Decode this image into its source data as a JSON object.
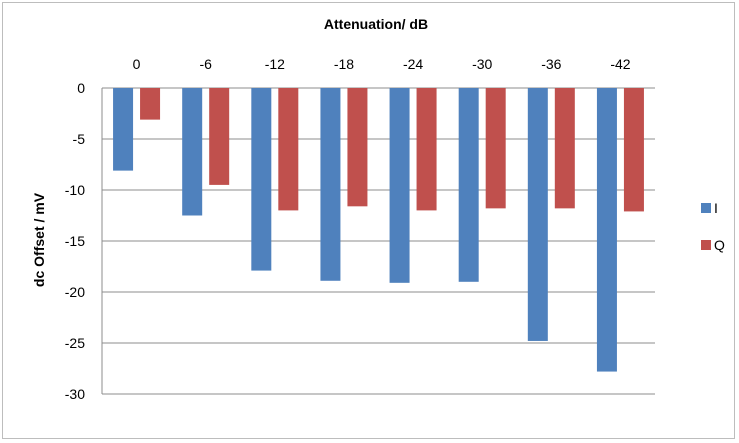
{
  "chart_data": {
    "type": "bar",
    "title": "",
    "xlabel": "Attenuation/ dB",
    "ylabel": "dc Offset / mV",
    "categories": [
      "0",
      "-6",
      "-12",
      "-18",
      "-24",
      "-30",
      "-36",
      "-42"
    ],
    "series": [
      {
        "name": "I",
        "color": "#4f81bd",
        "values": [
          -8.1,
          -12.5,
          -17.9,
          -18.9,
          -19.1,
          -19.0,
          -24.8,
          -27.8
        ]
      },
      {
        "name": "Q",
        "color": "#c0504d",
        "values": [
          -3.1,
          -9.5,
          -12.0,
          -11.6,
          -12.0,
          -11.8,
          -11.8,
          -12.1
        ]
      }
    ],
    "ylim": [
      -30,
      0
    ],
    "y_ticks": [
      "0",
      "-5",
      "-10",
      "-15",
      "-20",
      "-25",
      "-30"
    ],
    "y_tick_values": [
      0,
      -5,
      -10,
      -15,
      -20,
      -25,
      -30
    ],
    "x_axis_position": "top",
    "grid": true,
    "legend": "right"
  }
}
